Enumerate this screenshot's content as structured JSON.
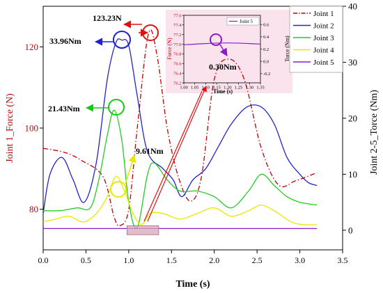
{
  "chart_data": [
    {
      "type": "line",
      "xlabel": "Time (s)",
      "ylabel_left": "Joint 1_Force (N)",
      "ylabel_right": "Joint 2-5_Torce (Nm)",
      "xlim": [
        0,
        3.5
      ],
      "ylim_left": [
        70,
        130
      ],
      "ylim_right": [
        -3.5,
        40
      ],
      "x_ticks": [
        "0.0",
        "0.5",
        "1.0",
        "1.5",
        "2.0",
        "2.5",
        "3.0",
        "3.5"
      ],
      "y_left_ticks": [
        "80",
        "100",
        "120"
      ],
      "y_right_ticks": [
        "0",
        "10",
        "20",
        "30",
        "40"
      ],
      "grid": false,
      "legend_position": "top-right",
      "series": [
        {
          "name": "Joint 1",
          "axis": "left",
          "color": "#c00000",
          "dash": "dashdot",
          "x": [
            0.0,
            0.25,
            0.45,
            0.7,
            0.83,
            0.9,
            1.0,
            1.1,
            1.23,
            1.33,
            1.45,
            1.58,
            1.72,
            1.85,
            2.0,
            2.17,
            2.35,
            2.55,
            2.75,
            2.95,
            3.2
          ],
          "y": [
            95,
            94,
            92,
            88,
            78,
            76,
            80,
            100,
            123.23,
            118,
            100,
            88,
            82,
            88,
            112,
            117,
            112,
            95,
            86,
            87,
            89
          ]
        },
        {
          "name": "Joint 2",
          "axis": "right",
          "color": "#2222cc",
          "dash": "solid",
          "x": [
            0.0,
            0.08,
            0.22,
            0.35,
            0.48,
            0.62,
            0.75,
            0.85,
            0.92,
            1.0,
            1.1,
            1.22,
            1.4,
            1.52,
            1.62,
            1.75,
            1.9,
            2.05,
            2.2,
            2.38,
            2.55,
            2.7,
            2.85,
            3.0,
            3.1,
            3.2
          ],
          "y": [
            3,
            10,
            13,
            9,
            5,
            12,
            27,
            33.5,
            33.96,
            33,
            24,
            14,
            11,
            9,
            6,
            9,
            11,
            15,
            19,
            22,
            22,
            19,
            13,
            10,
            8.5,
            8
          ]
        },
        {
          "name": "Joint 3",
          "axis": "right",
          "color": "#22cc22",
          "dash": "solid",
          "x": [
            0.0,
            0.2,
            0.4,
            0.55,
            0.65,
            0.75,
            0.83,
            0.92,
            1.0,
            1.1,
            1.22,
            1.3,
            1.45,
            1.6,
            1.8,
            2.0,
            2.2,
            2.4,
            2.55,
            2.7,
            2.85,
            3.0,
            3.2
          ],
          "y": [
            3.5,
            3.5,
            4,
            4,
            9,
            17,
            21.43,
            16,
            5,
            0.5,
            10,
            12,
            9,
            7,
            7,
            6,
            4,
            7,
            10,
            8,
            6,
            5,
            4.5
          ]
        },
        {
          "name": "Joint 4",
          "axis": "right",
          "color": "#e8e800",
          "dash": "solid",
          "x": [
            0.0,
            0.15,
            0.3,
            0.45,
            0.55,
            0.65,
            0.75,
            0.85,
            0.95,
            1.05,
            1.15,
            1.25,
            1.4,
            1.6,
            1.8,
            2.0,
            2.2,
            2.4,
            2.55,
            2.7,
            2.9,
            3.05,
            3.2
          ],
          "y": [
            1.5,
            2,
            2.5,
            1.5,
            2,
            3.5,
            6,
            9.61,
            7,
            3,
            1,
            3,
            3,
            2,
            3,
            4,
            2.5,
            3.5,
            4.5,
            3.5,
            1.5,
            1,
            1
          ]
        },
        {
          "name": "Joint 5",
          "axis": "right",
          "color": "#8a1acc",
          "dash": "solid",
          "x": [
            0.0,
            0.5,
            1.0,
            1.5,
            2.0,
            2.5,
            3.0,
            3.2
          ],
          "y": [
            0.3,
            0.3,
            0.3,
            0.3,
            0.3,
            0.3,
            0.3,
            0.3
          ]
        }
      ],
      "annotations": [
        {
          "text": "123.23N",
          "color": "#c00000"
        },
        {
          "text": "33.96Nm",
          "color": "#2222cc"
        },
        {
          "text": "21.43Nm",
          "color": "#22cc22"
        },
        {
          "text": "9.61Nm",
          "color": "#e8e800"
        }
      ],
      "highlight_box": {
        "x_range": [
          0.98,
          1.35
        ],
        "y_right": [
          -0.8,
          0.8
        ],
        "color": "#d9a8b8"
      }
    },
    {
      "type": "line",
      "xlabel": "Time (s)",
      "ylabel_left": "Force (N)",
      "ylabel_right": "Torce (Nm)",
      "xlim": [
        1.0,
        1.35
      ],
      "ylim_left": [
        76.2,
        77.6
      ],
      "ylim_right": [
        -0.35,
        0.75
      ],
      "x_ticks": [
        "1.00",
        "1.05",
        "1.10",
        "1.15",
        "1.20",
        "1.25",
        "1.30",
        "1.35"
      ],
      "y_left_ticks": [
        "76.2",
        "76.4",
        "76.6",
        "76.8",
        "77.0",
        "77.2",
        "77.4",
        "77.6"
      ],
      "y_right_ticks": [
        "-0.2",
        "0.0",
        "0.2",
        "0.4",
        "0.6"
      ],
      "background": "#fbe3ee",
      "legend_position": "top-right",
      "series": [
        {
          "name": "Joint 5",
          "axis": "right",
          "color": "#8a1acc",
          "dash": "solid",
          "x": [
            1.0,
            1.1,
            1.2,
            1.3,
            1.35
          ],
          "y": [
            0.27,
            0.29,
            0.3,
            0.29,
            0.28
          ]
        }
      ],
      "annotations": [
        {
          "text": "0.30Nm",
          "color": "#000000"
        }
      ]
    }
  ]
}
